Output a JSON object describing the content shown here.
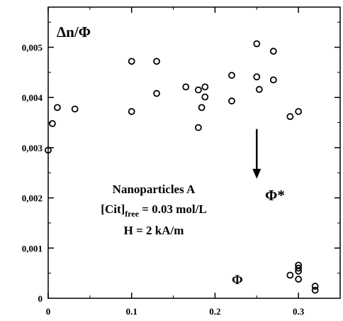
{
  "chart_data": {
    "type": "scatter",
    "title": "",
    "xlabel": "Φ",
    "ylabel": "Δn/Φ",
    "xlim": [
      0,
      0.35
    ],
    "ylim": [
      0,
      0.0058
    ],
    "x_ticks": [
      0,
      0.1,
      0.2,
      0.3
    ],
    "x_tick_labels": [
      "0",
      "0.1",
      "0.2",
      "0.3"
    ],
    "y_ticks": [
      0.001,
      0.002,
      0.003,
      0.004,
      0.005
    ],
    "y_tick_labels": [
      "0,001",
      "0,002",
      "0,003",
      "0,004",
      "0,005"
    ],
    "grid": false,
    "marker": "open-circle",
    "series": [
      {
        "points": [
          [
            0.0,
            0.00295
          ],
          [
            0.005,
            0.00348
          ],
          [
            0.011,
            0.0038
          ],
          [
            0.032,
            0.00377
          ],
          [
            0.1,
            0.00472
          ],
          [
            0.1,
            0.00372
          ],
          [
            0.13,
            0.00472
          ],
          [
            0.13,
            0.00408
          ],
          [
            0.165,
            0.00421
          ],
          [
            0.18,
            0.00415
          ],
          [
            0.18,
            0.0034
          ],
          [
            0.184,
            0.0038
          ],
          [
            0.188,
            0.00421
          ],
          [
            0.188,
            0.00401
          ],
          [
            0.22,
            0.00444
          ],
          [
            0.22,
            0.00393
          ],
          [
            0.25,
            0.00507
          ],
          [
            0.25,
            0.00441
          ],
          [
            0.253,
            0.00416
          ],
          [
            0.27,
            0.00492
          ],
          [
            0.27,
            0.00435
          ],
          [
            0.29,
            0.00362
          ],
          [
            0.29,
            0.00046
          ],
          [
            0.3,
            0.00372
          ],
          [
            0.3,
            0.00066
          ],
          [
            0.3,
            0.0006
          ],
          [
            0.3,
            0.00054
          ],
          [
            0.3,
            0.00038
          ],
          [
            0.32,
            0.00024
          ],
          [
            0.32,
            0.00016
          ]
        ]
      }
    ],
    "annotations": {
      "ylabel_text": "Δn/Φ",
      "xlabel_text": "Φ",
      "phi_star": "Φ*",
      "sample_line1": "Nanoparticles A",
      "sample_line2_main": "[Cit]",
      "sample_line2_sub": "free",
      "sample_line2_tail": " = 0.03 mol/L",
      "sample_line3": "H = 2 kA/m",
      "arrow": {
        "x": 0.25,
        "y_from": 0.00337,
        "y_to": 0.00238
      }
    }
  }
}
